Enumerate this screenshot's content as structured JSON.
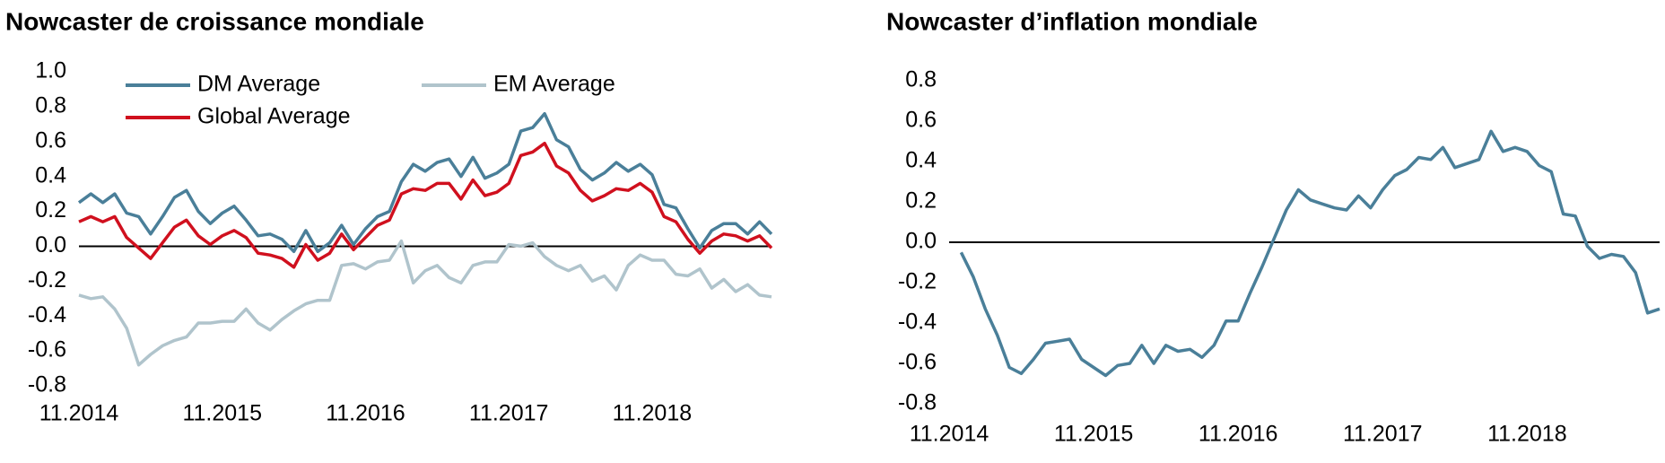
{
  "chart_data": [
    {
      "type": "line",
      "title": "Nowcaster de croissance mondiale",
      "categories": [
        "11.2014",
        null,
        null,
        null,
        null,
        null,
        null,
        null,
        null,
        null,
        null,
        null,
        "11.2015",
        null,
        null,
        null,
        null,
        null,
        null,
        null,
        null,
        null,
        null,
        null,
        "11.2016",
        null,
        null,
        null,
        null,
        null,
        null,
        null,
        null,
        null,
        null,
        null,
        "11.2017",
        null,
        null,
        null,
        null,
        null,
        null,
        null,
        null,
        null,
        null,
        null,
        "11.2018",
        null,
        null,
        null,
        null,
        null,
        null,
        null,
        null,
        null,
        null
      ],
      "series": [
        {
          "name": "DM Average",
          "color": "#4a7f99",
          "values": [
            0.25,
            0.3,
            0.25,
            0.3,
            0.19,
            0.17,
            0.07,
            0.17,
            0.28,
            0.32,
            0.2,
            0.13,
            0.19,
            0.23,
            0.15,
            0.06,
            0.07,
            0.04,
            -0.03,
            0.09,
            -0.03,
            0.02,
            0.12,
            0.01,
            0.1,
            0.17,
            0.2,
            0.37,
            0.47,
            0.43,
            0.48,
            0.5,
            0.4,
            0.51,
            0.39,
            0.42,
            0.47,
            0.66,
            0.68,
            0.76,
            0.61,
            0.57,
            0.44,
            0.38,
            0.42,
            0.48,
            0.43,
            0.47,
            0.41,
            0.24,
            0.22,
            0.1,
            -0.01,
            0.09,
            0.13,
            0.13,
            0.07,
            0.14,
            0.07
          ]
        },
        {
          "name": "EM Average",
          "color": "#b0c4cc",
          "values": [
            -0.28,
            -0.3,
            -0.29,
            -0.36,
            -0.47,
            -0.68,
            -0.62,
            -0.57,
            -0.54,
            -0.52,
            -0.44,
            -0.44,
            -0.43,
            -0.43,
            -0.36,
            -0.44,
            -0.48,
            -0.42,
            -0.37,
            -0.33,
            -0.31,
            -0.31,
            -0.11,
            -0.1,
            -0.13,
            -0.09,
            -0.08,
            0.03,
            -0.21,
            -0.14,
            -0.11,
            -0.18,
            -0.21,
            -0.11,
            -0.09,
            -0.09,
            0.01,
            0.0,
            0.02,
            -0.06,
            -0.11,
            -0.14,
            -0.11,
            -0.2,
            -0.17,
            -0.25,
            -0.11,
            -0.05,
            -0.08,
            -0.08,
            -0.16,
            -0.17,
            -0.13,
            -0.24,
            -0.19,
            -0.26,
            -0.22,
            -0.28,
            -0.29
          ]
        },
        {
          "name": "Global Average",
          "color": "#d0101e",
          "values": [
            0.14,
            0.17,
            0.14,
            0.17,
            0.05,
            -0.01,
            -0.07,
            0.02,
            0.11,
            0.15,
            0.06,
            0.01,
            0.06,
            0.09,
            0.05,
            -0.04,
            -0.05,
            -0.07,
            -0.12,
            0.01,
            -0.08,
            -0.04,
            0.07,
            -0.02,
            0.05,
            0.12,
            0.15,
            0.3,
            0.33,
            0.32,
            0.36,
            0.36,
            0.27,
            0.38,
            0.29,
            0.31,
            0.36,
            0.52,
            0.54,
            0.59,
            0.46,
            0.42,
            0.32,
            0.26,
            0.29,
            0.33,
            0.32,
            0.36,
            0.31,
            0.17,
            0.14,
            0.04,
            -0.04,
            0.03,
            0.07,
            0.06,
            0.03,
            0.06,
            -0.01
          ]
        }
      ],
      "ylim": [
        -0.8,
        1.0
      ],
      "yticks": [
        {
          "value": 1.0,
          "label": "1.0"
        },
        0.8,
        0.6,
        0.4,
        0.2,
        {
          "value": 0,
          "label": "0.0"
        },
        -0.2,
        -0.4,
        -0.6,
        -0.8
      ]
    },
    {
      "type": "line",
      "title": "Nowcaster d’inflation mondiale",
      "categories": [
        "11.2014",
        null,
        null,
        null,
        null,
        null,
        null,
        null,
        null,
        null,
        null,
        null,
        "11.2015",
        null,
        null,
        null,
        null,
        null,
        null,
        null,
        null,
        null,
        null,
        null,
        "11.2016",
        null,
        null,
        null,
        null,
        null,
        null,
        null,
        null,
        null,
        null,
        null,
        "11.2017",
        null,
        null,
        null,
        null,
        null,
        null,
        null,
        null,
        null,
        null,
        null,
        "11.2018",
        null,
        null,
        null,
        null,
        null,
        null,
        null,
        null,
        null,
        null,
        null
      ],
      "series": [
        {
          "color": "#4a7f99",
          "values": [
            null,
            -0.05,
            -0.17,
            -0.33,
            -0.46,
            -0.62,
            -0.65,
            -0.58,
            -0.5,
            -0.49,
            -0.48,
            -0.58,
            -0.62,
            -0.66,
            -0.61,
            -0.6,
            -0.51,
            -0.6,
            -0.51,
            -0.54,
            -0.53,
            -0.57,
            -0.51,
            -0.39,
            -0.39,
            -0.25,
            -0.12,
            0.02,
            0.16,
            0.26,
            0.21,
            0.19,
            0.17,
            0.16,
            0.23,
            0.17,
            0.26,
            0.33,
            0.36,
            0.42,
            0.41,
            0.47,
            0.37,
            0.39,
            0.41,
            0.55,
            0.45,
            0.47,
            0.45,
            0.38,
            0.35,
            0.14,
            0.13,
            -0.02,
            -0.08,
            -0.06,
            -0.07,
            -0.15,
            -0.35,
            -0.33
          ]
        }
      ],
      "ylim": [
        -0.8,
        0.8
      ],
      "yticks": [
        0.8,
        0.6,
        0.4,
        0.2,
        {
          "value": 0,
          "label": "0.0"
        },
        -0.2,
        -0.4,
        -0.6,
        -0.8
      ]
    }
  ]
}
